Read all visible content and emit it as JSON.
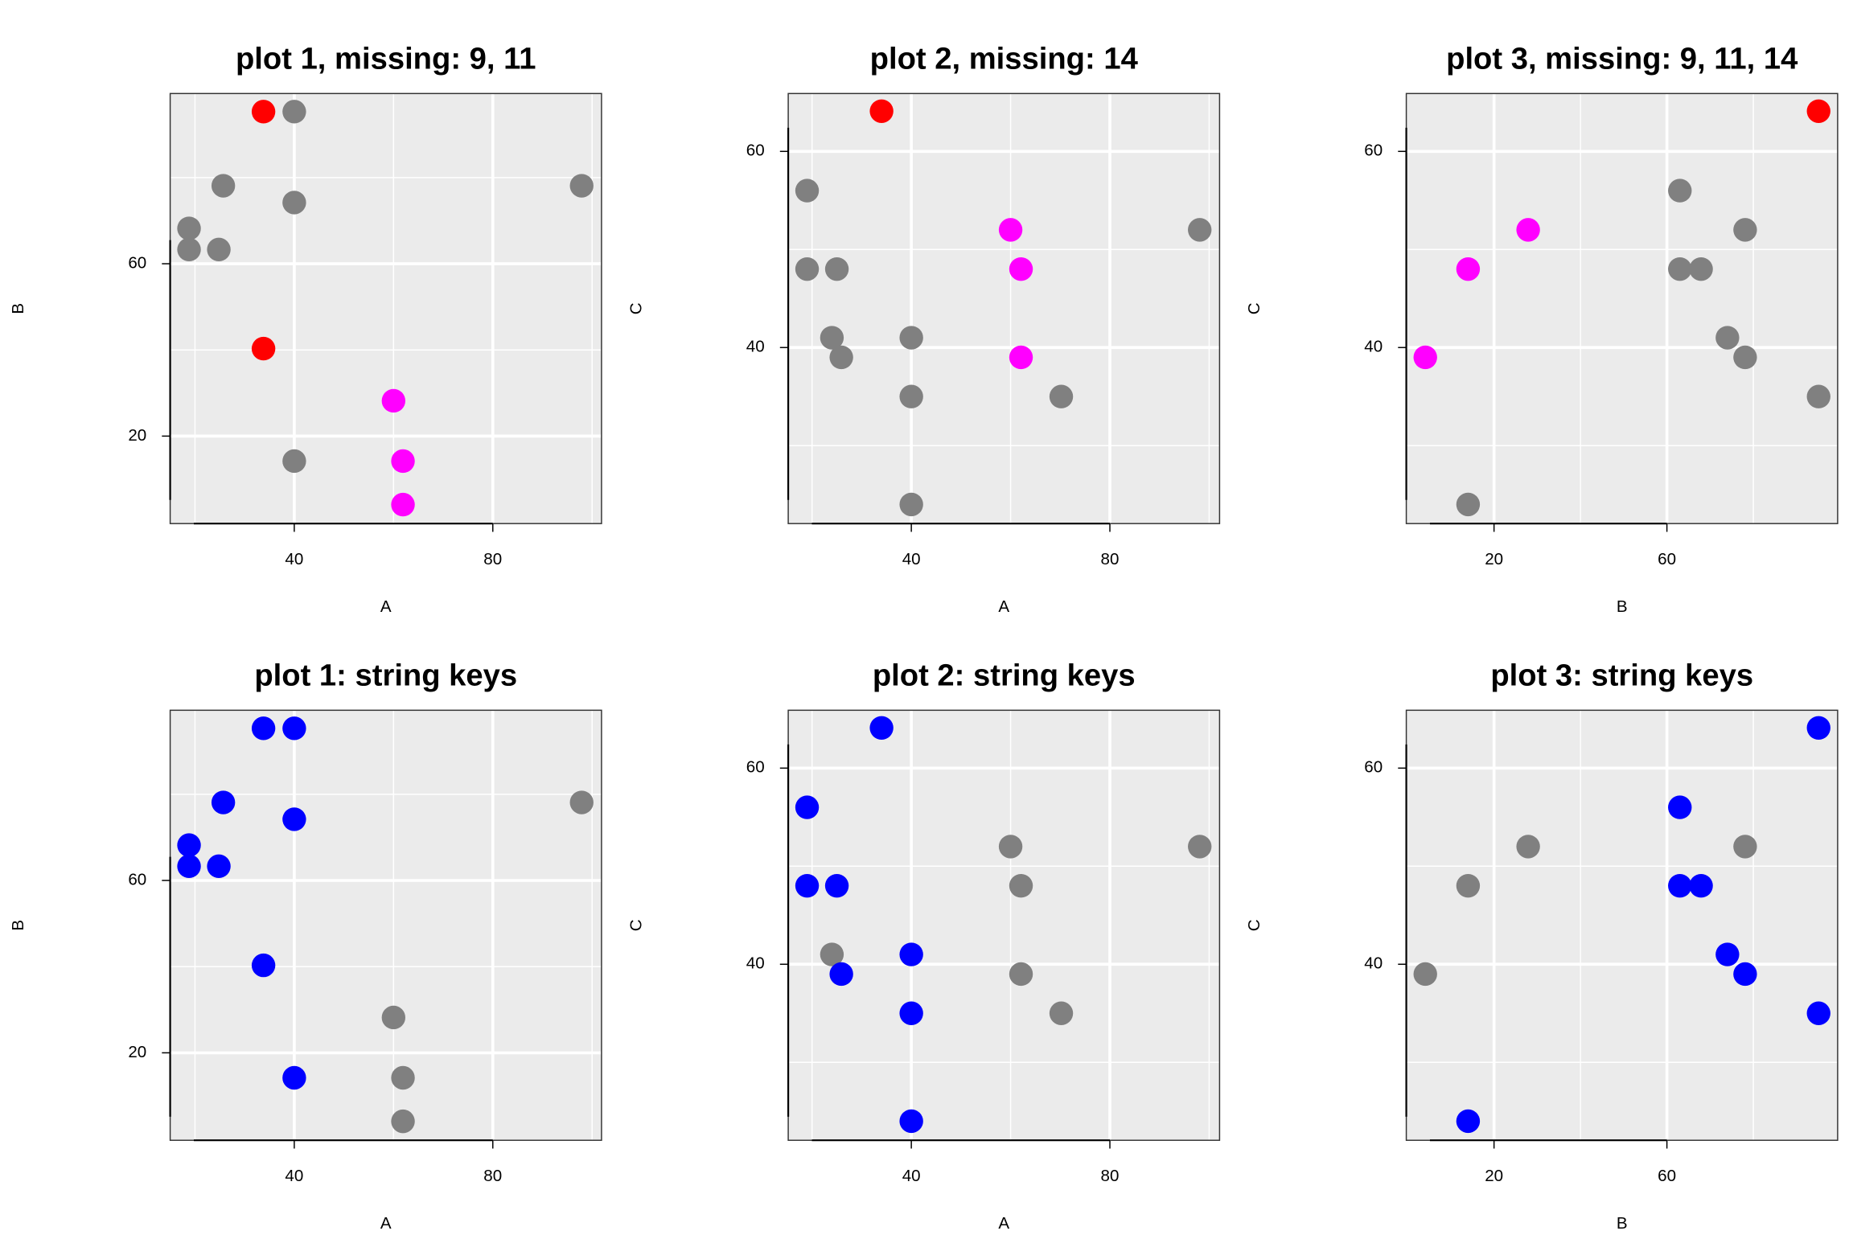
{
  "chart_data": [
    {
      "type": "scatter",
      "title": "plot 1, missing: 9, 11",
      "xlabel": "A",
      "ylabel": "B",
      "xlim": [
        15,
        101.9
      ],
      "ylim": [
        -0.3,
        99.5
      ],
      "xticks": [
        40,
        80
      ],
      "yticks": [
        20,
        60
      ],
      "xminor": [
        20,
        60,
        100
      ],
      "yminor": [
        40,
        80
      ],
      "x": [
        33.8,
        40,
        25.7,
        40,
        97.9,
        18.8,
        18.8,
        24.8,
        33.8,
        60,
        40,
        61.9,
        61.9
      ],
      "y": [
        95.3,
        95.3,
        78.1,
        74.2,
        78.1,
        68.2,
        63.3,
        63.3,
        40.3,
        28.2,
        14.2,
        14.2,
        4.1
      ],
      "colors": [
        "#ff0000",
        "#808080",
        "#808080",
        "#808080",
        "#808080",
        "#808080",
        "#808080",
        "#808080",
        "#ff0000",
        "#ff00ff",
        "#808080",
        "#ff00ff",
        "#ff00ff"
      ]
    },
    {
      "type": "scatter",
      "title": "plot 2, missing: 14",
      "xlabel": "A",
      "ylabel": "C",
      "xlim": [
        15.2,
        102.1
      ],
      "ylim": [
        22.05,
        65.9
      ],
      "xticks": [
        40,
        80
      ],
      "yticks": [
        40,
        60
      ],
      "xminor": [
        20,
        60,
        100
      ],
      "yminor": [
        30,
        50
      ],
      "x": [
        34,
        19,
        19,
        25,
        24,
        25.9,
        40,
        40,
        40,
        60,
        62.1,
        62.1,
        70.2,
        98.1
      ],
      "y": [
        64.1,
        56,
        48,
        48,
        41,
        39,
        41,
        35,
        24,
        52,
        48,
        39,
        35,
        52
      ],
      "colors": [
        "#ff0000",
        "#808080",
        "#808080",
        "#808080",
        "#808080",
        "#808080",
        "#808080",
        "#808080",
        "#808080",
        "#ff00ff",
        "#ff00ff",
        "#ff00ff",
        "#808080",
        "#808080"
      ]
    },
    {
      "type": "scatter",
      "title": "plot 3, missing: 9, 11, 14",
      "xlabel": "B",
      "ylabel": "C",
      "xlim": [
        -0.3,
        99.5
      ],
      "ylim": [
        22.05,
        65.9
      ],
      "xticks": [
        20,
        60
      ],
      "yticks": [
        40,
        60
      ],
      "xminor": [
        40,
        80
      ],
      "yminor": [
        30,
        50
      ],
      "x": [
        95.1,
        4.1,
        14,
        27.9,
        14,
        63,
        63,
        67.9,
        78.1,
        74,
        78.1,
        95.1
      ],
      "y": [
        64.1,
        39,
        48,
        52,
        24,
        56,
        48,
        48,
        52,
        41,
        39,
        35
      ],
      "colors": [
        "#ff0000",
        "#ff00ff",
        "#ff00ff",
        "#ff00ff",
        "#808080",
        "#808080",
        "#808080",
        "#808080",
        "#808080",
        "#808080",
        "#808080",
        "#808080"
      ]
    },
    {
      "type": "scatter",
      "title": "plot 1: string keys",
      "xlabel": "A",
      "ylabel": "B",
      "xlim": [
        15,
        101.9
      ],
      "ylim": [
        -0.3,
        99.5
      ],
      "xticks": [
        40,
        80
      ],
      "yticks": [
        20,
        60
      ],
      "xminor": [
        20,
        60,
        100
      ],
      "yminor": [
        40,
        80
      ],
      "x": [
        33.8,
        40,
        25.7,
        40,
        97.9,
        18.8,
        18.8,
        24.8,
        33.8,
        60,
        40,
        61.9,
        61.9
      ],
      "y": [
        95.3,
        95.3,
        78.1,
        74.2,
        78.1,
        68.2,
        63.3,
        63.3,
        40.3,
        28.2,
        14.2,
        14.2,
        4.1
      ],
      "colors": [
        "#0000ff",
        "#0000ff",
        "#0000ff",
        "#0000ff",
        "#808080",
        "#0000ff",
        "#0000ff",
        "#0000ff",
        "#0000ff",
        "#808080",
        "#0000ff",
        "#808080",
        "#808080"
      ]
    },
    {
      "type": "scatter",
      "title": "plot 2: string keys",
      "xlabel": "A",
      "ylabel": "C",
      "xlim": [
        15.2,
        102.1
      ],
      "ylim": [
        22.05,
        65.9
      ],
      "xticks": [
        40,
        80
      ],
      "yticks": [
        40,
        60
      ],
      "xminor": [
        20,
        60,
        100
      ],
      "yminor": [
        30,
        50
      ],
      "x": [
        34,
        19,
        19,
        25,
        24,
        25.9,
        40,
        40,
        40,
        60,
        62.1,
        62.1,
        70.2,
        98.1
      ],
      "y": [
        64.1,
        56,
        48,
        48,
        41,
        39,
        41,
        35,
        24,
        52,
        48,
        39,
        35,
        52
      ],
      "colors": [
        "#0000ff",
        "#0000ff",
        "#0000ff",
        "#0000ff",
        "#808080",
        "#0000ff",
        "#0000ff",
        "#0000ff",
        "#0000ff",
        "#808080",
        "#808080",
        "#808080",
        "#808080",
        "#808080"
      ]
    },
    {
      "type": "scatter",
      "title": "plot 3: string keys",
      "xlabel": "B",
      "ylabel": "C",
      "xlim": [
        -0.3,
        99.5
      ],
      "ylim": [
        22.05,
        65.9
      ],
      "xticks": [
        20,
        60
      ],
      "yticks": [
        40,
        60
      ],
      "xminor": [
        40,
        80
      ],
      "yminor": [
        30,
        50
      ],
      "x": [
        95.1,
        4.1,
        14,
        27.9,
        14,
        63,
        63,
        67.9,
        78.1,
        74,
        78.1,
        95.1
      ],
      "y": [
        64.1,
        39,
        48,
        52,
        24,
        56,
        48,
        48,
        52,
        41,
        39,
        35
      ],
      "colors": [
        "#0000ff",
        "#808080",
        "#808080",
        "#808080",
        "#0000ff",
        "#0000ff",
        "#0000ff",
        "#0000ff",
        "#808080",
        "#0000ff",
        "#0000ff",
        "#0000ff"
      ]
    }
  ]
}
